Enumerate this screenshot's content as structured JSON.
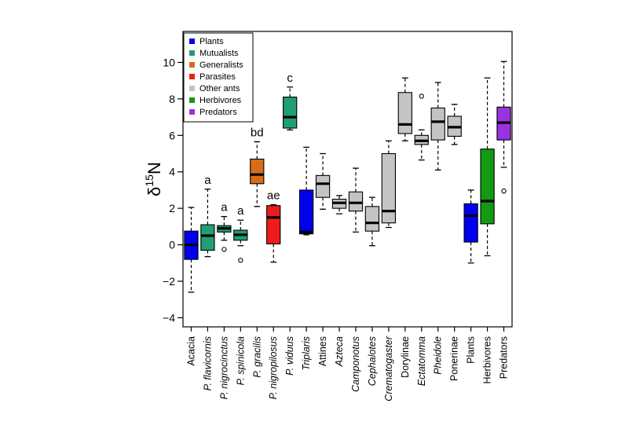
{
  "chart_data": {
    "type": "box",
    "ylabel_base": "δ",
    "ylabel_sup": "15",
    "ylabel_sub": "N",
    "ylim": [
      -4.5,
      11.7
    ],
    "yticks": [
      -4,
      -2,
      0,
      2,
      4,
      6,
      8,
      10
    ],
    "yticklabels": [
      "−4",
      "−2",
      "0",
      "2",
      "4",
      "6",
      "8",
      "10"
    ],
    "legend_position": "top-left",
    "legend": [
      {
        "label": "Plants",
        "color": "#0000ee"
      },
      {
        "label": "Mutualists",
        "color": "#1f9e78"
      },
      {
        "label": "Generalists",
        "color": "#d96c17"
      },
      {
        "label": "Parasites",
        "color": "#ee1c1c"
      },
      {
        "label": "Other ants",
        "color": "#c4c4c4"
      },
      {
        "label": "Herbivores",
        "color": "#139a13"
      },
      {
        "label": "Predators",
        "color": "#9932e0"
      }
    ],
    "categories": [
      {
        "label": "Acacia",
        "italic": false,
        "color": "#0000ee",
        "letter": "",
        "whisker_low": -2.6,
        "q1": -0.8,
        "median": 0.0,
        "q3": 0.75,
        "whisker_high": 2.05,
        "outliers": []
      },
      {
        "label": "P. flavicornis",
        "italic": true,
        "color": "#1f9e78",
        "letter": "a",
        "whisker_low": -0.65,
        "q1": -0.3,
        "median": 0.5,
        "q3": 1.1,
        "whisker_high": 3.05,
        "outliers": []
      },
      {
        "label": "P. nigrocinctus",
        "italic": true,
        "color": "#1f9e78",
        "letter": "a",
        "whisker_low": 0.25,
        "q1": 0.7,
        "median": 0.9,
        "q3": 1.05,
        "whisker_high": 1.55,
        "outliers": [
          -0.25
        ]
      },
      {
        "label": "P. spinicola",
        "italic": true,
        "color": "#1f9e78",
        "letter": "a",
        "whisker_low": -0.05,
        "q1": 0.25,
        "median": 0.55,
        "q3": 0.8,
        "whisker_high": 1.35,
        "outliers": [
          -0.85
        ]
      },
      {
        "label": "P. gracilis",
        "italic": true,
        "color": "#d96c17",
        "letter": "bd",
        "whisker_low": 2.1,
        "q1": 3.35,
        "median": 3.85,
        "q3": 4.7,
        "whisker_high": 5.65,
        "outliers": []
      },
      {
        "label": "P. nigropilosus",
        "italic": true,
        "color": "#ee1c1c",
        "letter": "ae",
        "whisker_low": -0.95,
        "q1": 0.05,
        "median": 1.5,
        "q3": 2.15,
        "whisker_high": 2.2,
        "outliers": []
      },
      {
        "label": "P. viduus",
        "italic": true,
        "color": "#1f9e78",
        "letter": "c",
        "whisker_low": 6.3,
        "q1": 6.4,
        "median": 7.0,
        "q3": 8.1,
        "whisker_high": 8.65,
        "outliers": []
      },
      {
        "label": "Triplaris",
        "italic": true,
        "color": "#0000ee",
        "letter": "",
        "whisker_low": 0.55,
        "q1": 0.6,
        "median": 0.7,
        "q3": 3.0,
        "whisker_high": 5.35,
        "outliers": []
      },
      {
        "label": "Attines",
        "italic": false,
        "color": "#c4c4c4",
        "letter": "",
        "whisker_low": 1.95,
        "q1": 2.6,
        "median": 3.35,
        "q3": 3.8,
        "whisker_high": 5.0,
        "outliers": []
      },
      {
        "label": "Azteca",
        "italic": true,
        "color": "#c4c4c4",
        "letter": "",
        "whisker_low": 1.7,
        "q1": 2.0,
        "median": 2.3,
        "q3": 2.5,
        "whisker_high": 2.7,
        "outliers": []
      },
      {
        "label": "Camponotus",
        "italic": true,
        "color": "#c4c4c4",
        "letter": "",
        "whisker_low": 0.7,
        "q1": 1.85,
        "median": 2.3,
        "q3": 2.9,
        "whisker_high": 4.2,
        "outliers": []
      },
      {
        "label": "Cephalotes",
        "italic": true,
        "color": "#c4c4c4",
        "letter": "",
        "whisker_low": -0.05,
        "q1": 0.75,
        "median": 1.2,
        "q3": 2.1,
        "whisker_high": 2.6,
        "outliers": []
      },
      {
        "label": "Crematogaster",
        "italic": true,
        "color": "#c4c4c4",
        "letter": "",
        "whisker_low": 0.95,
        "q1": 1.2,
        "median": 1.85,
        "q3": 5.0,
        "whisker_high": 5.7,
        "outliers": []
      },
      {
        "label": "Dorylinae",
        "italic": false,
        "color": "#c4c4c4",
        "letter": "",
        "whisker_low": 5.7,
        "q1": 6.1,
        "median": 6.6,
        "q3": 8.35,
        "whisker_high": 9.15,
        "outliers": []
      },
      {
        "label": "Ectatomma",
        "italic": true,
        "color": "#c4c4c4",
        "letter": "",
        "whisker_low": 4.65,
        "q1": 5.5,
        "median": 5.7,
        "q3": 6.0,
        "whisker_high": 6.3,
        "outliers": [
          8.15
        ]
      },
      {
        "label": "Pheidole",
        "italic": true,
        "color": "#c4c4c4",
        "letter": "",
        "whisker_low": 4.1,
        "q1": 5.75,
        "median": 6.75,
        "q3": 7.5,
        "whisker_high": 8.9,
        "outliers": []
      },
      {
        "label": "Ponerinae",
        "italic": false,
        "color": "#c4c4c4",
        "letter": "",
        "whisker_low": 5.5,
        "q1": 5.95,
        "median": 6.45,
        "q3": 7.05,
        "whisker_high": 7.7,
        "outliers": []
      },
      {
        "label": "Plants",
        "italic": false,
        "color": "#0000ee",
        "letter": "",
        "whisker_low": -1.0,
        "q1": 0.15,
        "median": 1.6,
        "q3": 2.25,
        "whisker_high": 3.0,
        "outliers": []
      },
      {
        "label": "Herbivores",
        "italic": false,
        "color": "#139a13",
        "letter": "",
        "whisker_low": -0.6,
        "q1": 1.15,
        "median": 2.4,
        "q3": 5.25,
        "whisker_high": 9.15,
        "outliers": []
      },
      {
        "label": "Predators",
        "italic": false,
        "color": "#9932e0",
        "letter": "",
        "whisker_low": 4.25,
        "q1": 5.75,
        "median": 6.7,
        "q3": 7.55,
        "whisker_high": 10.05,
        "outliers": [
          2.95
        ]
      }
    ]
  }
}
